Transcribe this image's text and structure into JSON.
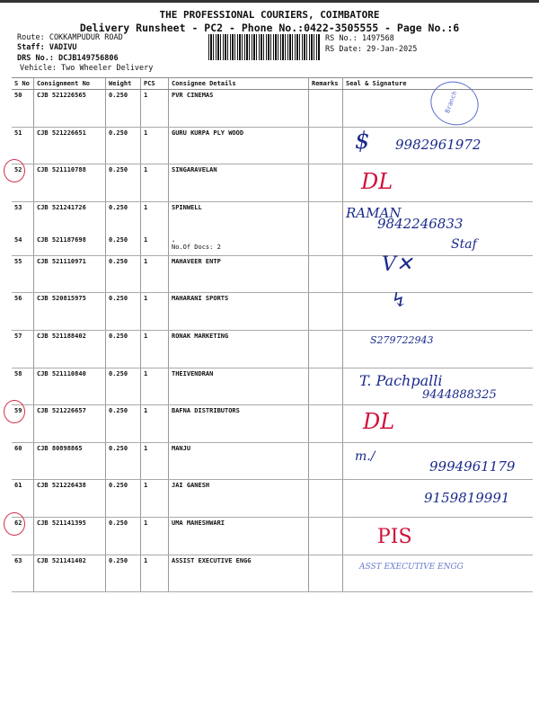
{
  "header": {
    "company": "THE PROFESSIONAL COURIERS, COIMBATORE",
    "subtitle": "Delivery Runsheet - PC2 - Phone No.:0422-3505555 - Page No.:6",
    "route": "Route: COKKAMPUDUR ROAD",
    "staff": "Staff: VADIVU",
    "drs": "DRS No.: DCJB149756806",
    "vehicle": "Vehicle: Two Wheeler Delivery",
    "rs_no": "RS No.: 1497568",
    "rs_date": "RS Date: 29-Jan-2025"
  },
  "columns": [
    "S No",
    "Consignment No",
    "Weight",
    "PCS",
    "Consignee Details",
    "Remarks",
    "Seal & Signature"
  ],
  "rows": [
    {
      "sno": "50",
      "cn": "CJB 521226565",
      "wt": "0.250",
      "pcs": "1",
      "name": "PVR CINEMAS"
    },
    {
      "sno": "51",
      "cn": "CJB 521226651",
      "wt": "0.250",
      "pcs": "1",
      "name": "GURU KURPA PLY WOOD"
    },
    {
      "sno": "52",
      "cn": "CJB 521110788",
      "wt": "0.250",
      "pcs": "1",
      "name": "SINGARAVELAN"
    },
    {
      "sno": "53",
      "cn": "CJB 521241726",
      "wt": "0.250",
      "pcs": "1",
      "name": "SPINWELL"
    },
    {
      "sno": "54",
      "cn": "CJB 521187698",
      "wt": "0.250",
      "pcs": "1",
      "name": ".",
      "extra": "No.Of Docs: 2"
    },
    {
      "sno": "55",
      "cn": "CJB 521110971",
      "wt": "0.250",
      "pcs": "1",
      "name": "MAHAVEER ENTP"
    },
    {
      "sno": "56",
      "cn": "CJB 520815975",
      "wt": "0.250",
      "pcs": "1",
      "name": "MAHARANI SPORTS"
    },
    {
      "sno": "57",
      "cn": "CJB 521188402",
      "wt": "0.250",
      "pcs": "1",
      "name": "RONAK MARKETING"
    },
    {
      "sno": "58",
      "cn": "CJB 521110840",
      "wt": "0.250",
      "pcs": "1",
      "name": "THEIVENDRAN"
    },
    {
      "sno": "59",
      "cn": "CJB 521226657",
      "wt": "0.250",
      "pcs": "1",
      "name": "BAFNA DISTRIBUTORS"
    },
    {
      "sno": "60",
      "cn": "CJB 80898865",
      "wt": "0.250",
      "pcs": "1",
      "name": "MANJU"
    },
    {
      "sno": "61",
      "cn": "CJB 521226438",
      "wt": "0.250",
      "pcs": "1",
      "name": "JAI GANESH"
    },
    {
      "sno": "62",
      "cn": "CJB 521141395",
      "wt": "0.250",
      "pcs": "1",
      "name": "UMA MAHESHWARI"
    },
    {
      "sno": "63",
      "cn": "CJB 521141402",
      "wt": "0.250",
      "pcs": "1",
      "name": "ASSIST EXECUTIVE ENGG"
    }
  ],
  "handwriting": {
    "r51": "9982961972",
    "r52": "DL",
    "r53a": "RAMAN",
    "r53b": "9842246833",
    "r54": "Staf",
    "r57": "S279722943",
    "r58a": "T. Pachpalli",
    "r58b": "9444888325",
    "r59": "DL",
    "r60": "9994961179",
    "r61": "9159819991",
    "r62": "PIS"
  },
  "stamps": {
    "top": "Branch",
    "bottom": "ASST EXECUTIVE ENGG"
  },
  "colors": {
    "ink_blue": "#1a2a8a",
    "ink_red": "#d0103a",
    "stamp": "#5a6ad0"
  }
}
